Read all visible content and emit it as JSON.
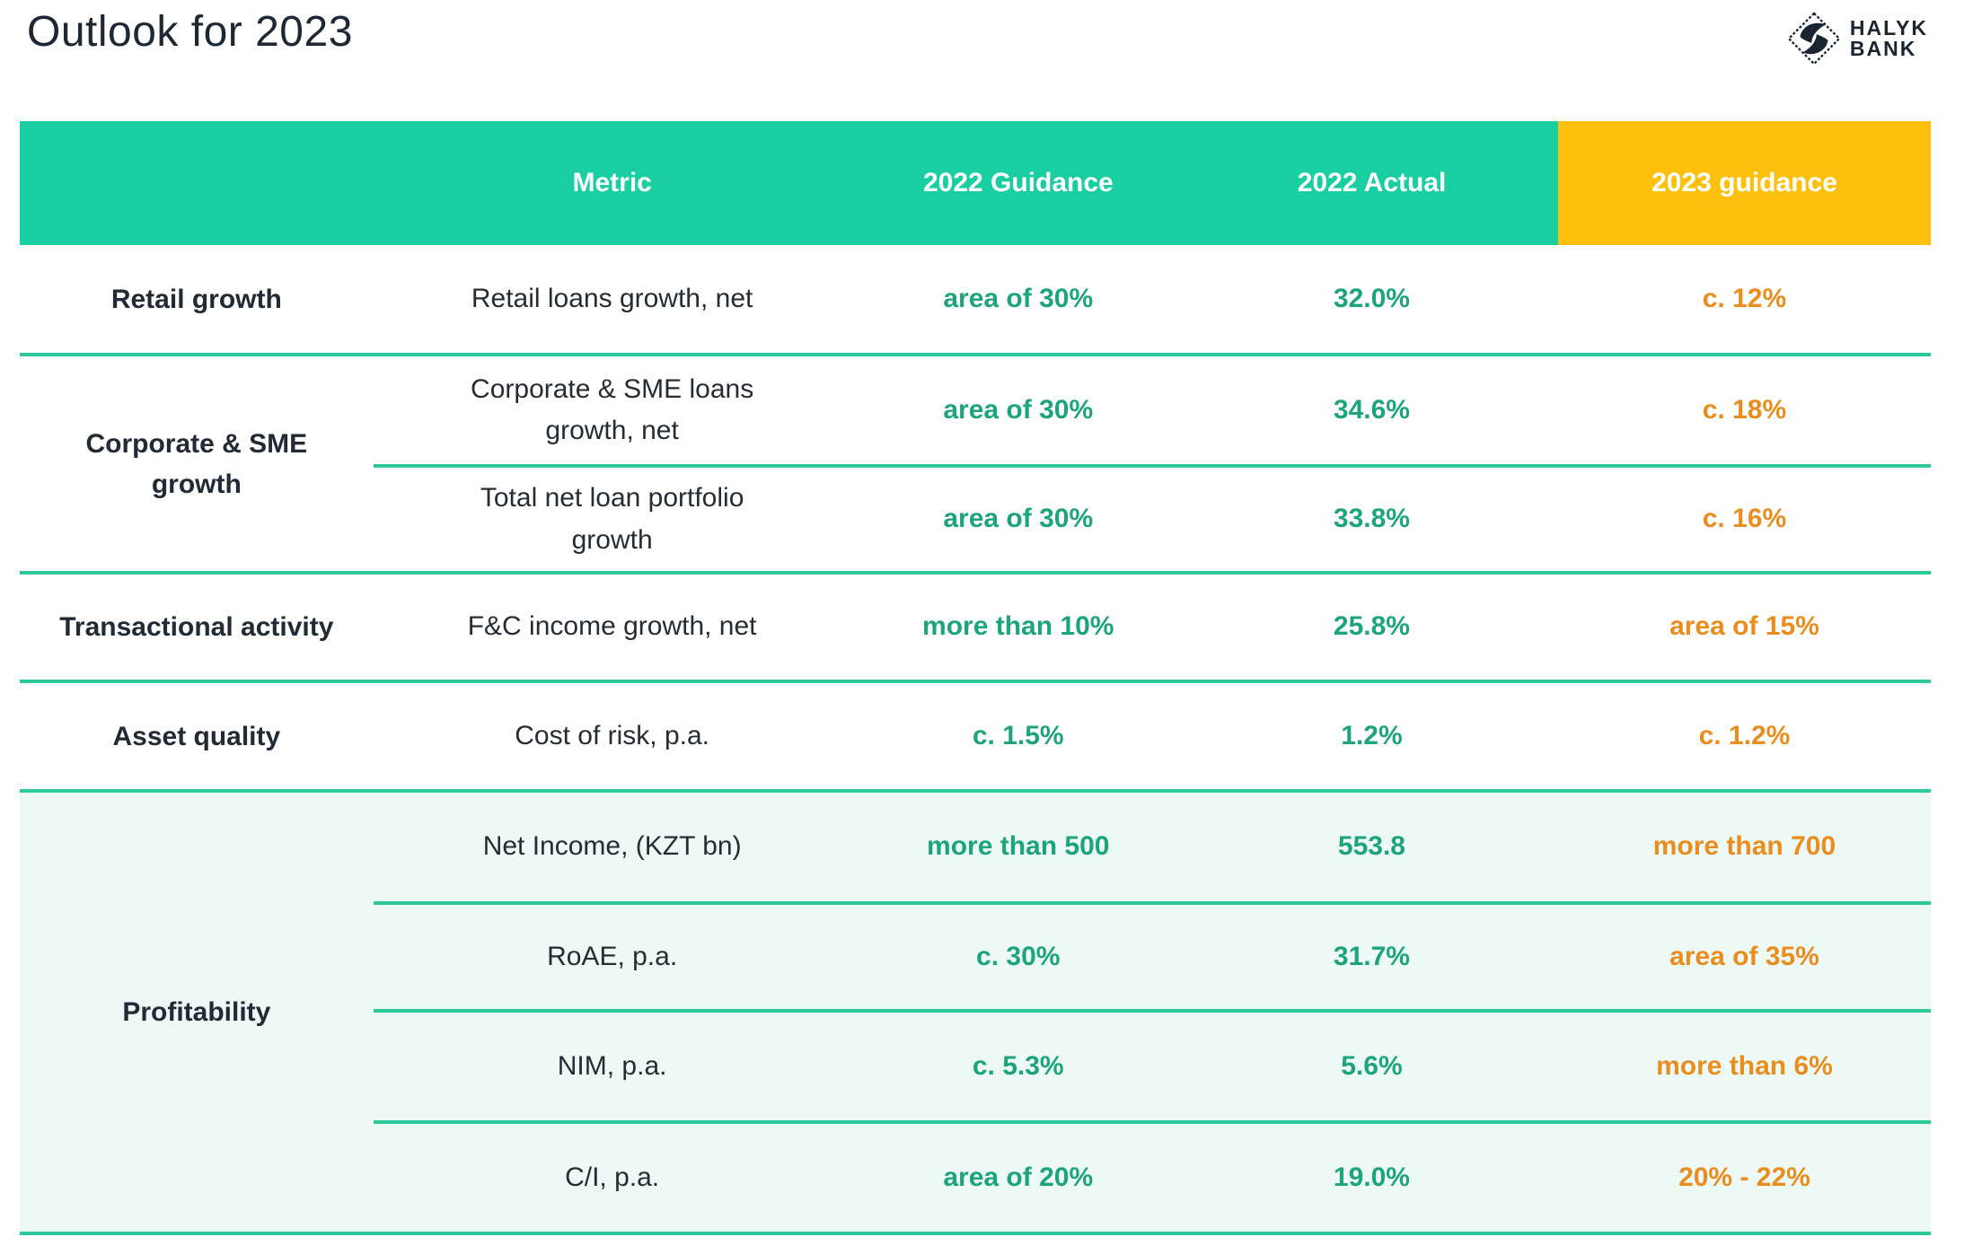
{
  "page": {
    "title": "Outlook for 2023"
  },
  "logo": {
    "name": "halyk-bank-logo",
    "line1": "HALYK",
    "line2": "BANK"
  },
  "colors": {
    "header_teal": "#19cfa1",
    "header_amber": "#fec00e",
    "divider_teal": "#2fc89d",
    "highlight_mint": "#edf9f4",
    "green_text": "#1ea47d",
    "orange_text": "#e98d1e",
    "dark_text": "#222b35"
  },
  "table": {
    "headers": [
      "",
      "Metric",
      "2022 Guidance",
      "2022 Actual",
      "2023 guidance"
    ],
    "groups": [
      {
        "category": "Retail growth",
        "highlight": false,
        "rows": [
          {
            "metric": "Retail loans growth, net",
            "guidance_2022": "area of 30%",
            "actual_2022": "32.0%",
            "guidance_2023": "c. 12%"
          }
        ]
      },
      {
        "category": "Corporate & SME growth",
        "highlight": false,
        "rows": [
          {
            "metric": "Corporate & SME loans growth, net",
            "guidance_2022": "area of 30%",
            "actual_2022": "34.6%",
            "guidance_2023": "c. 18%"
          },
          {
            "metric": "Total net loan portfolio growth",
            "guidance_2022": "area of 30%",
            "actual_2022": "33.8%",
            "guidance_2023": "c. 16%"
          }
        ]
      },
      {
        "category": "Transactional activity",
        "highlight": false,
        "rows": [
          {
            "metric": "F&C income growth, net",
            "guidance_2022": "more than 10%",
            "actual_2022": "25.8%",
            "guidance_2023": "area of 15%"
          }
        ]
      },
      {
        "category": "Asset quality",
        "highlight": false,
        "rows": [
          {
            "metric": "Cost of risk, p.a.",
            "guidance_2022": "c. 1.5%",
            "actual_2022": "1.2%",
            "guidance_2023": "c. 1.2%"
          }
        ]
      },
      {
        "category": "Profitability",
        "highlight": true,
        "rows": [
          {
            "metric": "Net Income, (KZT bn)",
            "guidance_2022": "more than 500",
            "actual_2022": "553.8",
            "guidance_2023": "more than 700"
          },
          {
            "metric": "RoAE, p.a.",
            "guidance_2022": "c. 30%",
            "actual_2022": "31.7%",
            "guidance_2023": "area of 35%"
          },
          {
            "metric": "NIM, p.a.",
            "guidance_2022": "c. 5.3%",
            "actual_2022": "5.6%",
            "guidance_2023": "more than 6%"
          },
          {
            "metric": "C/I, p.a.",
            "guidance_2022": "area of 20%",
            "actual_2022": "19.0%",
            "guidance_2023": "20% - 22%"
          }
        ]
      }
    ]
  }
}
